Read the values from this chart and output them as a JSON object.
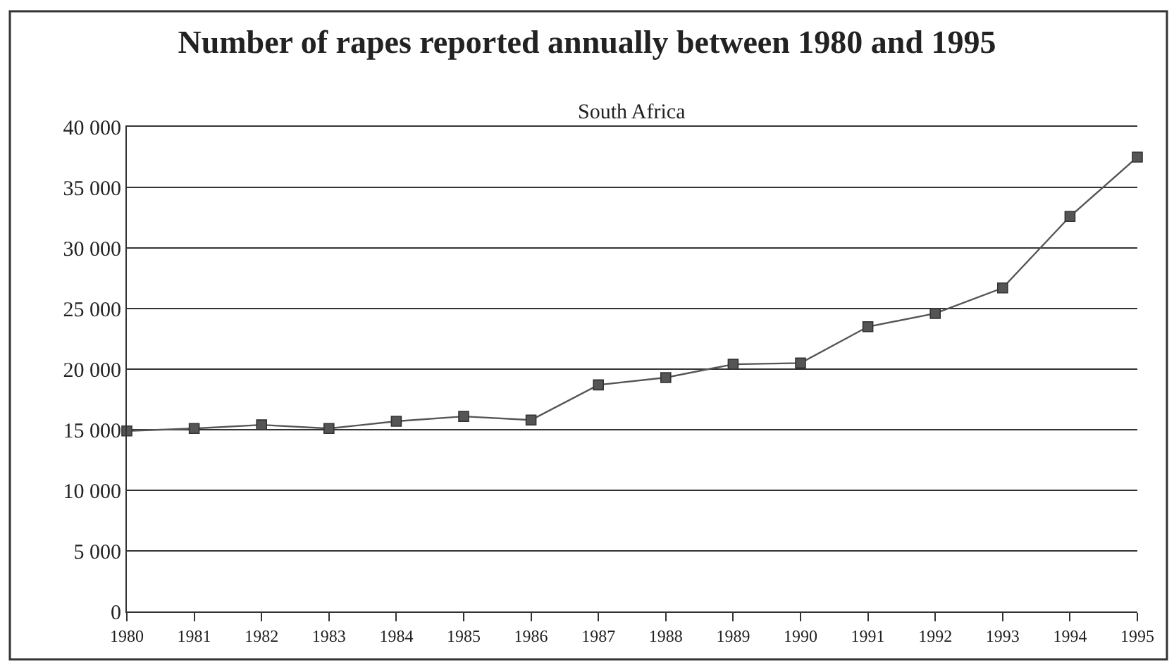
{
  "chart_data": {
    "type": "line",
    "title": "Number of rapes reported annually between 1980 and 1995",
    "subtitle": "South Africa",
    "categories": [
      "1980",
      "1981",
      "1982",
      "1983",
      "1984",
      "1985",
      "1986",
      "1987",
      "1988",
      "1989",
      "1990",
      "1991",
      "1992",
      "1993",
      "1994",
      "1995"
    ],
    "series": [
      {
        "color": "#555555",
        "values": [
          14900,
          15100,
          15400,
          15100,
          15700,
          16100,
          15800,
          18700,
          19300,
          20400,
          20500,
          23500,
          24600,
          26700,
          32600,
          37500
        ]
      }
    ],
    "ylim": [
      0,
      40000
    ],
    "yticks": [
      {
        "value": 0,
        "label": "0"
      },
      {
        "value": 5000,
        "label": "5 000"
      },
      {
        "value": 10000,
        "label": "10 000"
      },
      {
        "value": 15000,
        "label": "15 000"
      },
      {
        "value": 20000,
        "label": "20 000"
      },
      {
        "value": 25000,
        "label": "25 000"
      },
      {
        "value": 30000,
        "label": "30 000"
      },
      {
        "value": 35000,
        "label": "35 000"
      },
      {
        "value": 40000,
        "label": "40 000"
      }
    ],
    "grid": "y",
    "marker": "square",
    "line_style": "solid"
  }
}
